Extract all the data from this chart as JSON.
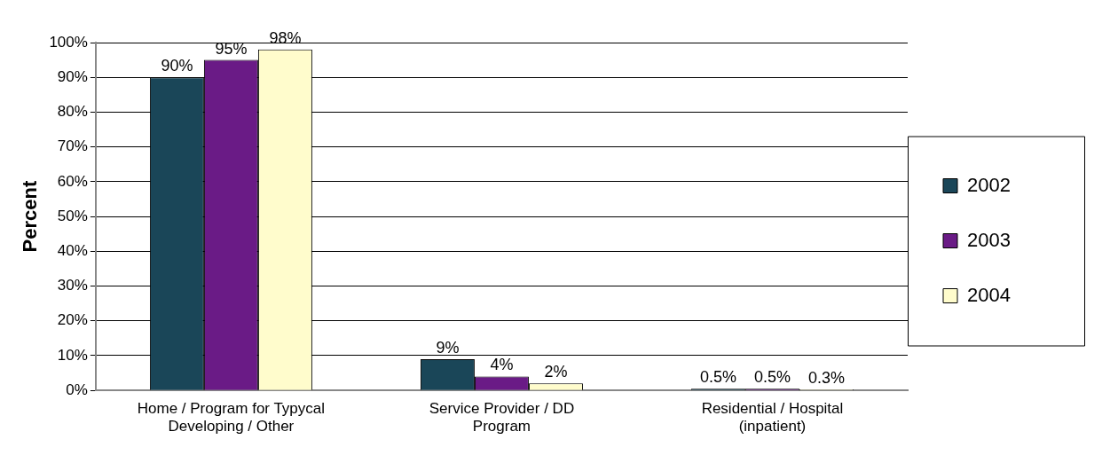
{
  "chart_data": {
    "type": "bar",
    "ylabel": "Percent",
    "categories": [
      "Home / Program for Typycal Developing / Other",
      "Service Provider / DD Program",
      "Residential / Hospital (inpatient)"
    ],
    "series": [
      {
        "name": "2002",
        "color": "#1a4658",
        "values": [
          90,
          9,
          0.5
        ],
        "value_labels": [
          "90%",
          "9%",
          "0.5%"
        ]
      },
      {
        "name": "2003",
        "color": "#6a1b86",
        "values": [
          95,
          4,
          0.5
        ],
        "value_labels": [
          "95%",
          "4%",
          "0.5%"
        ]
      },
      {
        "name": "2004",
        "color": "#fffccc",
        "values": [
          98,
          2,
          0.3
        ],
        "value_labels": [
          "98%",
          "2%",
          "0.3%"
        ]
      }
    ],
    "ylim": [
      0,
      100
    ],
    "yticks": [
      {
        "value": 0,
        "label": "0%"
      },
      {
        "value": 10,
        "label": "10%"
      },
      {
        "value": 20,
        "label": "20%"
      },
      {
        "value": 30,
        "label": "30%"
      },
      {
        "value": 40,
        "label": "40%"
      },
      {
        "value": 50,
        "label": "50%"
      },
      {
        "value": 60,
        "label": "60%"
      },
      {
        "value": 70,
        "label": "70%"
      },
      {
        "value": 80,
        "label": "80%"
      },
      {
        "value": 90,
        "label": "90%"
      },
      {
        "value": 100,
        "label": "100%"
      }
    ],
    "grid": "y",
    "legend": "right"
  }
}
